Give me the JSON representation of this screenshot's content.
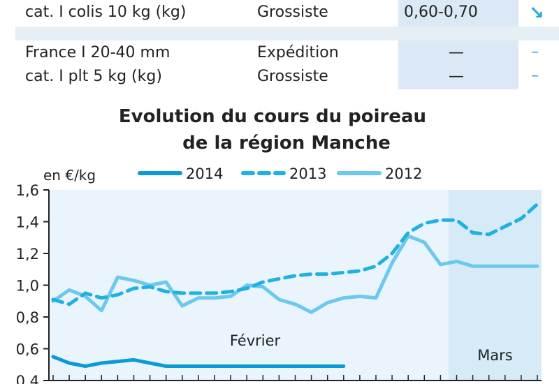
{
  "table": {
    "rows": [
      {
        "product": [
          "cat. I colis 10 kg (kg)"
        ],
        "market": [
          "Grossiste"
        ],
        "price": [
          "0,60-0,70"
        ],
        "trend": [
          "↘"
        ]
      },
      {
        "product": [
          "France I 20-40 mm",
          "cat. I plt 5 kg (kg)"
        ],
        "market": [
          "Expédition",
          "Grossiste"
        ],
        "price": [
          "—",
          "—"
        ],
        "trend": [
          "–",
          "–"
        ]
      }
    ]
  },
  "colors": {
    "s2014": "#0b9ad8",
    "s2013": "#1fb1e0",
    "s2012": "#6cc8ee",
    "plot_bg": "#e9f4fc",
    "mars_bg": "#d6eaf8",
    "trend": "#29a8df"
  },
  "chart_data": {
    "type": "line",
    "title": [
      "Evolution du cours du poireau",
      "de la région Manche"
    ],
    "unit_label": "en €/kg",
    "ylim": [
      0.4,
      1.6
    ],
    "yticks": [
      "0,4",
      "0,6",
      "0,8",
      "1,0",
      "1,2",
      "1,4",
      "1,6"
    ],
    "ytick_values": [
      0.4,
      0.6,
      0.8,
      1.0,
      1.2,
      1.4,
      1.6
    ],
    "x_count": 31,
    "period_labels": [
      "Février",
      "Mars"
    ],
    "mars_start_index": 24.5,
    "legend": [
      "2014",
      "2013",
      "2012"
    ],
    "series": [
      {
        "name": "2014",
        "style": "solid-thick",
        "x": [
          0,
          1,
          2,
          3,
          4,
          5,
          6,
          7,
          8,
          9,
          10,
          11,
          12,
          13,
          14,
          15,
          16,
          17,
          18
        ],
        "values": [
          0.55,
          0.51,
          0.49,
          0.51,
          0.52,
          0.53,
          0.51,
          0.49,
          0.49,
          0.49,
          0.49,
          0.49,
          0.49,
          0.49,
          0.49,
          0.49,
          0.49,
          0.49,
          0.49
        ]
      },
      {
        "name": "2013",
        "style": "dashed",
        "x": [
          0,
          1,
          2,
          3,
          4,
          5,
          6,
          7,
          8,
          9,
          10,
          11,
          12,
          13,
          14,
          15,
          16,
          17,
          18,
          19,
          20,
          21,
          22,
          23,
          24,
          25,
          26,
          27,
          28,
          29,
          30
        ],
        "values": [
          0.91,
          0.88,
          0.95,
          0.92,
          0.94,
          0.98,
          0.99,
          0.96,
          0.95,
          0.95,
          0.95,
          0.96,
          0.98,
          1.02,
          1.04,
          1.06,
          1.07,
          1.07,
          1.08,
          1.09,
          1.12,
          1.2,
          1.33,
          1.39,
          1.41,
          1.41,
          1.33,
          1.32,
          1.37,
          1.42,
          1.51
        ]
      },
      {
        "name": "2012",
        "style": "solid-light",
        "x": [
          0,
          1,
          2,
          3,
          4,
          5,
          6,
          7,
          8,
          9,
          10,
          11,
          12,
          13,
          14,
          15,
          16,
          17,
          18,
          19,
          20,
          21,
          22,
          23,
          24,
          25,
          26,
          27,
          28,
          29,
          30
        ],
        "values": [
          0.9,
          0.97,
          0.93,
          0.84,
          1.05,
          1.03,
          1.0,
          1.02,
          0.87,
          0.92,
          0.92,
          0.93,
          1.0,
          0.99,
          0.91,
          0.88,
          0.83,
          0.89,
          0.92,
          0.93,
          0.92,
          1.14,
          1.31,
          1.27,
          1.13,
          1.15,
          1.12,
          1.12,
          1.12,
          1.12,
          1.12
        ]
      }
    ]
  }
}
